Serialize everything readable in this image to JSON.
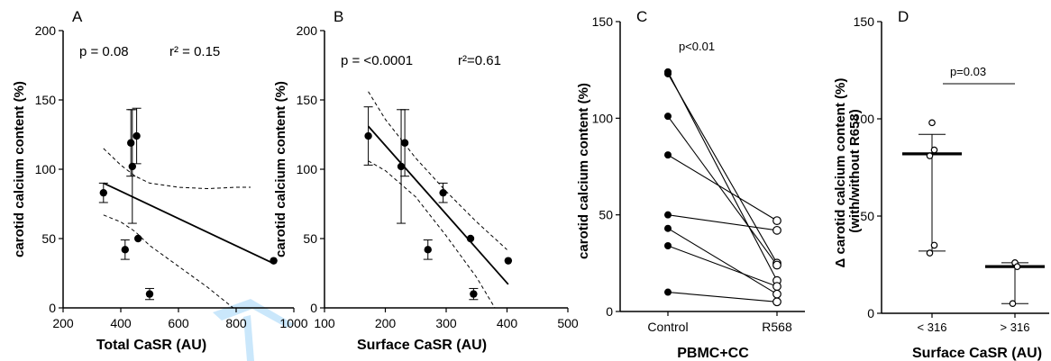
{
  "chart_data": [
    {
      "panel": "A",
      "type": "scatter",
      "annotations": [
        "p = 0.08",
        "r² = 0.15"
      ],
      "xlabel": "Total CaSR (AU)",
      "ylabel": "carotid calcium content (%)",
      "xlim": [
        200,
        1000
      ],
      "ylim": [
        0,
        200
      ],
      "xticks": [
        "200",
        "400",
        "600",
        "800",
        "1000"
      ],
      "yticks": [
        "0",
        "50",
        "100",
        "150",
        "200"
      ],
      "points": [
        {
          "x": 340,
          "y": 83,
          "err": 7
        },
        {
          "x": 415,
          "y": 42,
          "err": 7
        },
        {
          "x": 435,
          "y": 119,
          "err": 24
        },
        {
          "x": 440,
          "y": 102,
          "err": 41
        },
        {
          "x": 455,
          "y": 124,
          "err": 20
        },
        {
          "x": 460,
          "y": 50,
          "err": 0
        },
        {
          "x": 500,
          "y": 10,
          "err": 4
        },
        {
          "x": 930,
          "y": 34,
          "err": 0
        }
      ],
      "fit": {
        "x": [
          340,
          930
        ],
        "y": [
          90,
          32
        ]
      },
      "ci_upper": [
        [
          340,
          115
        ],
        [
          400,
          103
        ],
        [
          450,
          95
        ],
        [
          500,
          90
        ],
        [
          600,
          87
        ],
        [
          700,
          86
        ],
        [
          800,
          87
        ],
        [
          850,
          87
        ]
      ],
      "ci_lower": [
        [
          340,
          67
        ],
        [
          400,
          62
        ],
        [
          450,
          55
        ],
        [
          500,
          45
        ],
        [
          600,
          30
        ],
        [
          700,
          15
        ],
        [
          790,
          0
        ]
      ]
    },
    {
      "panel": "B",
      "type": "scatter",
      "annotations": [
        "p = <0.0001",
        "r²=0.61"
      ],
      "xlabel": "Surface CaSR (AU)",
      "ylabel": "carotid calcium content (%)",
      "xlim": [
        100,
        500
      ],
      "ylim": [
        0,
        200
      ],
      "xticks": [
        "100",
        "200",
        "300",
        "400",
        "500"
      ],
      "yticks": [
        "0",
        "50",
        "100",
        "150",
        "200"
      ],
      "points": [
        {
          "x": 172,
          "y": 124,
          "err": 21
        },
        {
          "x": 226,
          "y": 102,
          "err": 41
        },
        {
          "x": 232,
          "y": 119,
          "err": 24
        },
        {
          "x": 270,
          "y": 42,
          "err": 7
        },
        {
          "x": 295,
          "y": 83,
          "err": 7
        },
        {
          "x": 340,
          "y": 50,
          "err": 0
        },
        {
          "x": 345,
          "y": 10,
          "err": 4
        },
        {
          "x": 402,
          "y": 34,
          "err": 0
        }
      ],
      "fit": {
        "x": [
          172,
          402
        ],
        "y": [
          131,
          17
        ]
      },
      "ci_upper": [
        [
          172,
          156
        ],
        [
          200,
          136
        ],
        [
          250,
          108
        ],
        [
          300,
          84
        ],
        [
          350,
          62
        ],
        [
          400,
          42
        ]
      ],
      "ci_lower": [
        [
          172,
          106
        ],
        [
          200,
          99
        ],
        [
          250,
          80
        ],
        [
          300,
          52
        ],
        [
          350,
          22
        ],
        [
          380,
          0
        ]
      ]
    },
    {
      "panel": "C",
      "type": "line",
      "annotations": [
        "p<0.01"
      ],
      "categories": [
        "Control",
        "R568"
      ],
      "xlabel": "PBMC+CC",
      "ylabel": "carotid calcium content (%)",
      "ylim": [
        0,
        150
      ],
      "yticks": [
        "0",
        "50",
        "100",
        "150"
      ],
      "pairs": [
        [
          124,
          16
        ],
        [
          123,
          25
        ],
        [
          101,
          24
        ],
        [
          81,
          47
        ],
        [
          50,
          42
        ],
        [
          43,
          9
        ],
        [
          34,
          13
        ],
        [
          10,
          5
        ]
      ]
    },
    {
      "panel": "D",
      "type": "scatter",
      "annotations": [
        "p=0.03"
      ],
      "categories": [
        "< 316",
        "> 316"
      ],
      "xlabel": "Surface CaSR (AU)",
      "ylabel": "Δ carotid calcium content (%)\n(with/without R658)",
      "ylim": [
        0,
        150
      ],
      "yticks": [
        "0",
        "50",
        "100",
        "150"
      ],
      "groups": [
        {
          "name": "< 316",
          "points": [
            98,
            84,
            81,
            35,
            31
          ],
          "median": 82,
          "upper": 92,
          "lower": 32
        },
        {
          "name": "> 316",
          "points": [
            26,
            24,
            5
          ],
          "median": 24,
          "upper": 26,
          "lower": 5
        }
      ]
    }
  ]
}
